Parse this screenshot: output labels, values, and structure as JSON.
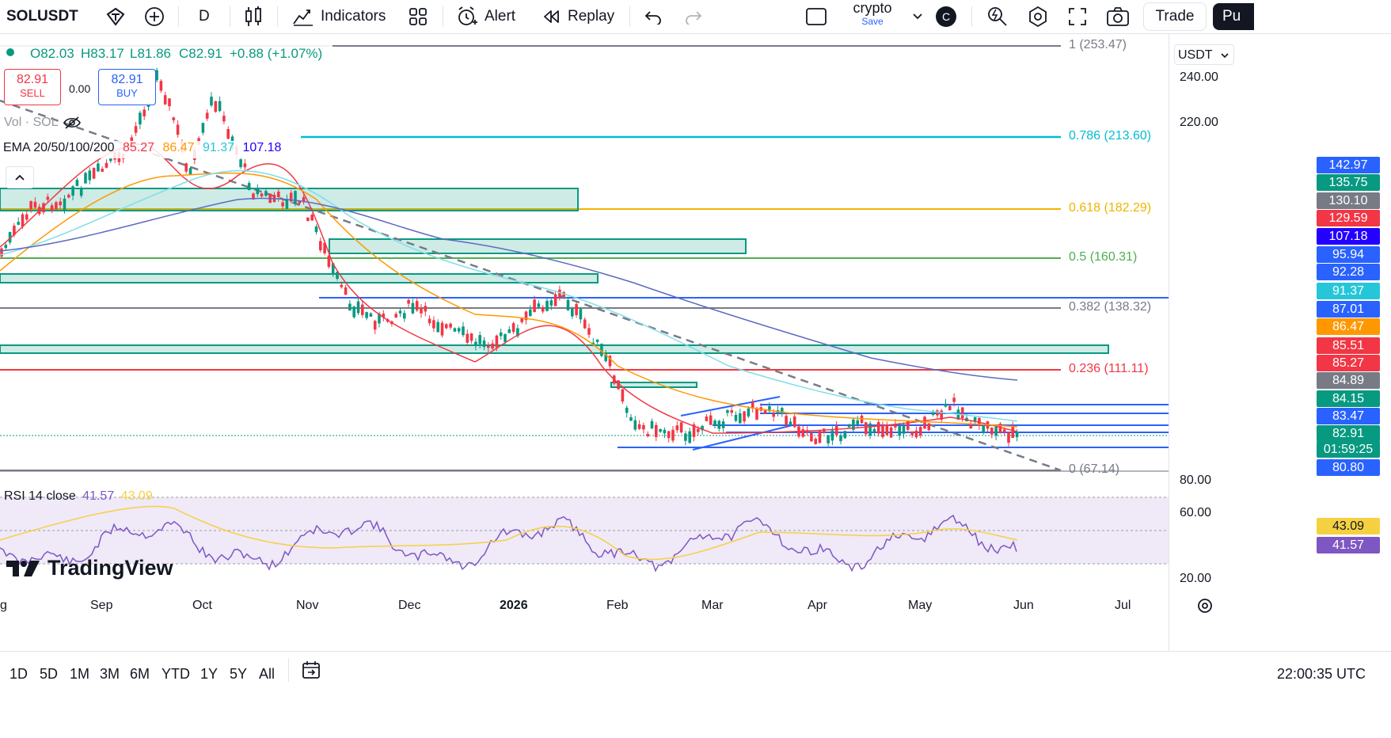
{
  "toolbar": {
    "symbol": "SOLUSDT",
    "interval": "D",
    "indicators_label": "Indicators",
    "alert_label": "Alert",
    "replay_label": "Replay",
    "layout_name": "crypto",
    "layout_save": "Save",
    "avatar_letter": "C",
    "trade_label": "Trade",
    "publish_label": "Pu"
  },
  "legend": {
    "open": "O82.03",
    "high": "H83.17",
    "low": "L81.86",
    "close": "C82.91",
    "change": "+0.88 (+1.07%)",
    "sell_price": "82.91",
    "sell_label": "SELL",
    "spread": "0.00",
    "buy_price": "82.91",
    "buy_label": "BUY",
    "vol_label": "Vol · SOL",
    "ema_label": "EMA 20/50/100/200",
    "ema_values": [
      "85.27",
      "86.47",
      "91.37",
      "107.18"
    ],
    "rsi_label": "RSI 14 close",
    "rsi_values": [
      "41.57",
      "43.09"
    ]
  },
  "currency": "USDT",
  "price_axis": [
    "240.00",
    "220.00"
  ],
  "rsi_axis": [
    "80.00",
    "60.00",
    "20.00"
  ],
  "fib_levels": [
    {
      "label": "1 (253.47)",
      "color": "#787b86"
    },
    {
      "label": "0.786 (213.60)",
      "color": "#00bcd4"
    },
    {
      "label": "0.618 (182.29)",
      "color": "#f0b400"
    },
    {
      "label": "0.5 (160.31)",
      "color": "#4caf50"
    },
    {
      "label": "0.382 (138.32)",
      "color": "#787b86"
    },
    {
      "label": "0.236 (111.11)",
      "color": "#f23645"
    },
    {
      "label": "0 (67.14)",
      "color": "#787b86"
    }
  ],
  "price_labels": [
    {
      "text": "142.97",
      "bg": "#2962ff"
    },
    {
      "text": "135.75",
      "bg": "#089981"
    },
    {
      "text": "130.10",
      "bg": "#787b86"
    },
    {
      "text": "129.59",
      "bg": "#f23645"
    },
    {
      "text": "107.18",
      "bg": "#2300ff"
    },
    {
      "text": "95.94",
      "bg": "#2962ff"
    },
    {
      "text": "92.28",
      "bg": "#2962ff"
    },
    {
      "text": "91.37",
      "bg": "#26c6da"
    },
    {
      "text": "87.01",
      "bg": "#2962ff"
    },
    {
      "text": "86.47",
      "bg": "#ff9800"
    },
    {
      "text": "85.51",
      "bg": "#f23645"
    },
    {
      "text": "85.27",
      "bg": "#f23645"
    },
    {
      "text": "84.89",
      "bg": "#787b86"
    },
    {
      "text": "84.15",
      "bg": "#089981"
    },
    {
      "text": "83.47",
      "bg": "#2962ff"
    },
    {
      "text": "82.91",
      "bg": "#089981"
    },
    {
      "text": "01:59:25",
      "bg": "#089981"
    },
    {
      "text": "80.80",
      "bg": "#2962ff"
    }
  ],
  "rsi_labels": [
    {
      "text": "43.09",
      "bg": "#f5d142"
    },
    {
      "text": "41.57",
      "bg": "#7e57c2"
    }
  ],
  "time_axis": [
    "g",
    "Sep",
    "Oct",
    "Nov",
    "Dec",
    "2026",
    "Feb",
    "Mar",
    "Apr",
    "May",
    "Jun",
    "Jul"
  ],
  "ranges": [
    "1D",
    "5D",
    "1M",
    "3M",
    "6M",
    "YTD",
    "1Y",
    "5Y",
    "All"
  ],
  "clock": "22:00:35 UTC",
  "brand": "TradingView"
}
